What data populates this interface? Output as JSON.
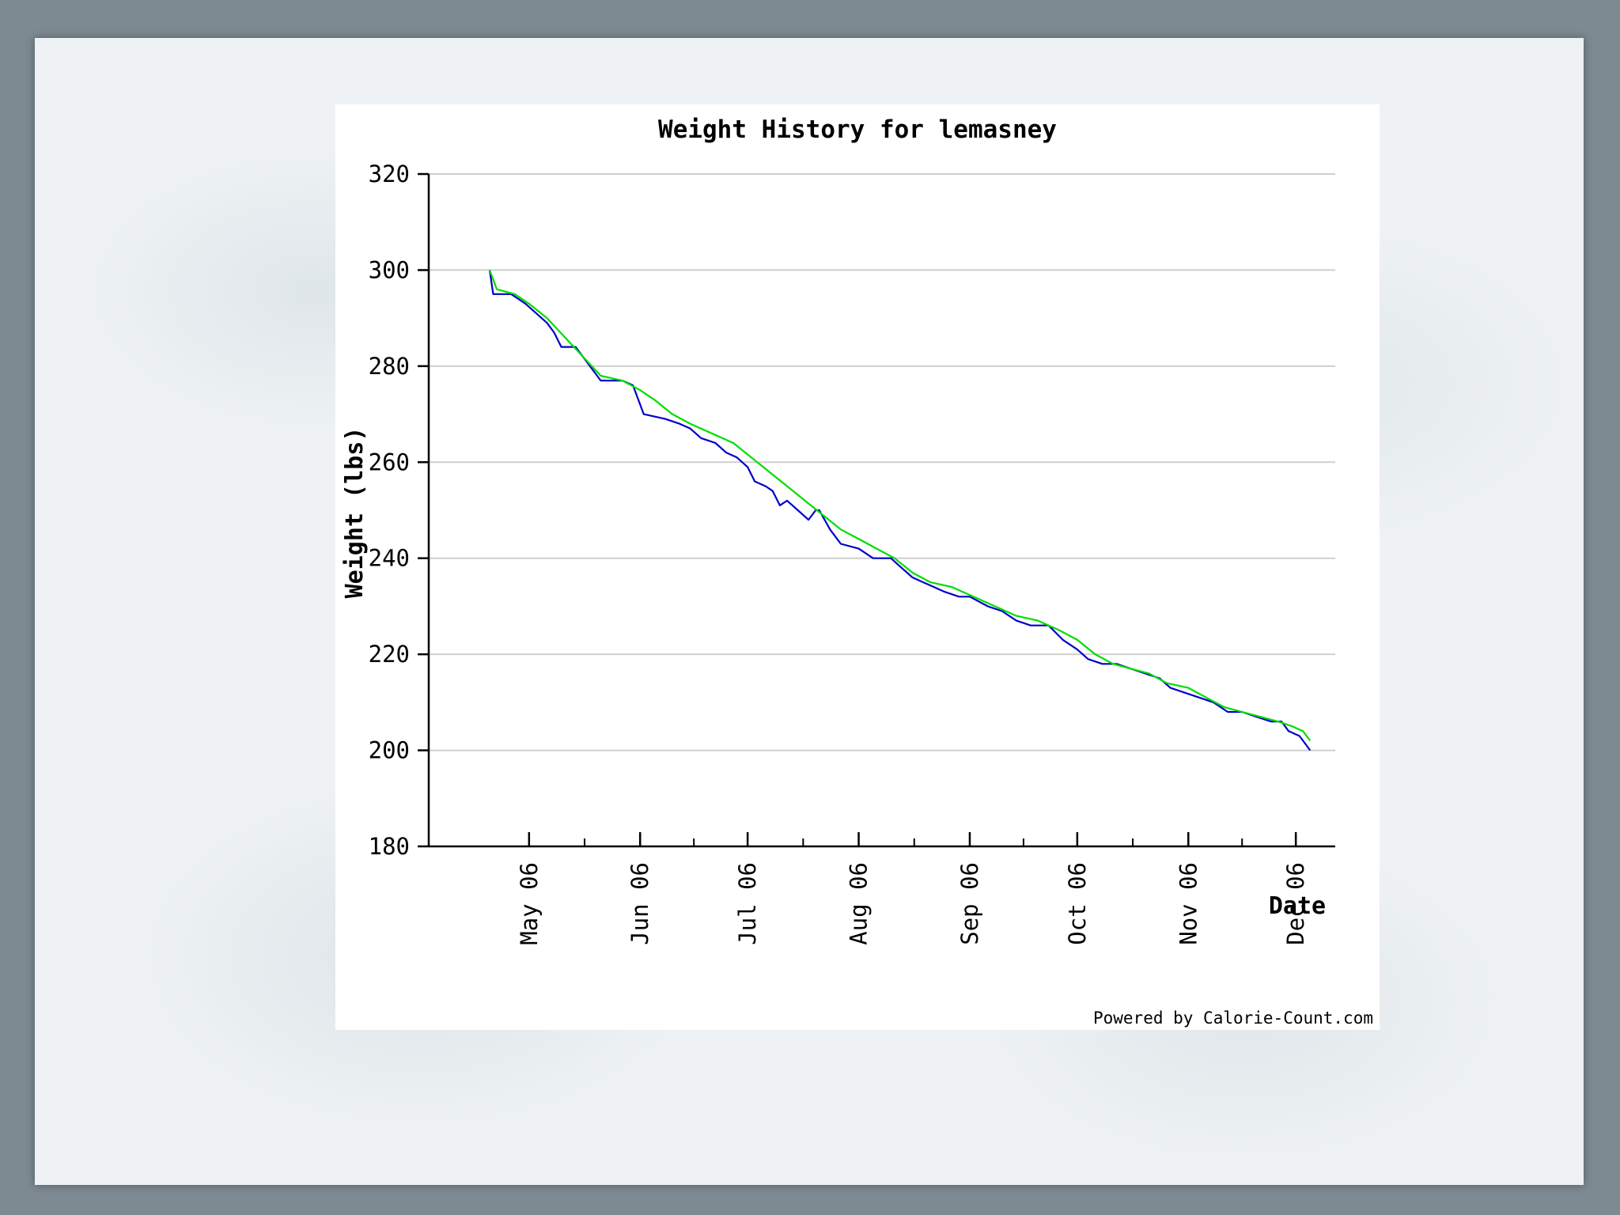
{
  "chart_data": {
    "type": "line",
    "title": "Weight History for lemasney",
    "xlabel": "Date",
    "ylabel": "Weight (lbs)",
    "ylim": [
      180,
      320
    ],
    "yticks": [
      180,
      200,
      220,
      240,
      260,
      280,
      300,
      320
    ],
    "xlim": [
      "2006-04-03",
      "2006-12-12"
    ],
    "xticks": [
      {
        "label": "May 06",
        "date": "2006-05-01"
      },
      {
        "label": "Jun 06",
        "date": "2006-06-01"
      },
      {
        "label": "Jul 06",
        "date": "2006-07-01"
      },
      {
        "label": "Aug 06",
        "date": "2006-08-01"
      },
      {
        "label": "Sep 06",
        "date": "2006-09-01"
      },
      {
        "label": "Oct 06",
        "date": "2006-10-01"
      },
      {
        "label": "Nov 06",
        "date": "2006-11-01"
      },
      {
        "label": "Dec 06",
        "date": "2006-12-01"
      }
    ],
    "grid": "horizontal",
    "legend": "none",
    "series": [
      {
        "color": "#0000cc",
        "points": [
          [
            "2006-04-20",
            300
          ],
          [
            "2006-04-21",
            295
          ],
          [
            "2006-04-26",
            295
          ],
          [
            "2006-04-30",
            293
          ],
          [
            "2006-05-03",
            291
          ],
          [
            "2006-05-06",
            289
          ],
          [
            "2006-05-08",
            287
          ],
          [
            "2006-05-10",
            284
          ],
          [
            "2006-05-14",
            284
          ],
          [
            "2006-05-17",
            281
          ],
          [
            "2006-05-20",
            278
          ],
          [
            "2006-05-21",
            277
          ],
          [
            "2006-05-27",
            277
          ],
          [
            "2006-05-30",
            276
          ],
          [
            "2006-06-02",
            270
          ],
          [
            "2006-06-08",
            269
          ],
          [
            "2006-06-12",
            268
          ],
          [
            "2006-06-15",
            267
          ],
          [
            "2006-06-18",
            265
          ],
          [
            "2006-06-22",
            264
          ],
          [
            "2006-06-25",
            262
          ],
          [
            "2006-06-28",
            261
          ],
          [
            "2006-07-01",
            259
          ],
          [
            "2006-07-03",
            256
          ],
          [
            "2006-07-06",
            255
          ],
          [
            "2006-07-08",
            254
          ],
          [
            "2006-07-10",
            251
          ],
          [
            "2006-07-12",
            252
          ],
          [
            "2006-07-15",
            250
          ],
          [
            "2006-07-18",
            248
          ],
          [
            "2006-07-20",
            250
          ],
          [
            "2006-07-21",
            250
          ],
          [
            "2006-07-24",
            246
          ],
          [
            "2006-07-27",
            243
          ],
          [
            "2006-08-01",
            242
          ],
          [
            "2006-08-05",
            240
          ],
          [
            "2006-08-10",
            240
          ],
          [
            "2006-08-13",
            238
          ],
          [
            "2006-08-16",
            236
          ],
          [
            "2006-08-19",
            235
          ],
          [
            "2006-08-22",
            234
          ],
          [
            "2006-08-25",
            233
          ],
          [
            "2006-08-29",
            232
          ],
          [
            "2006-09-01",
            232
          ],
          [
            "2006-09-06",
            230
          ],
          [
            "2006-09-10",
            229
          ],
          [
            "2006-09-14",
            227
          ],
          [
            "2006-09-18",
            226
          ],
          [
            "2006-09-23",
            226
          ],
          [
            "2006-09-27",
            223
          ],
          [
            "2006-10-01",
            221
          ],
          [
            "2006-10-04",
            219
          ],
          [
            "2006-10-08",
            218
          ],
          [
            "2006-10-12",
            218
          ],
          [
            "2006-10-16",
            217
          ],
          [
            "2006-10-20",
            216
          ],
          [
            "2006-10-24",
            215
          ],
          [
            "2006-10-27",
            213
          ],
          [
            "2006-10-31",
            212
          ],
          [
            "2006-11-04",
            211
          ],
          [
            "2006-11-08",
            210
          ],
          [
            "2006-11-12",
            208
          ],
          [
            "2006-11-16",
            208
          ],
          [
            "2006-11-20",
            207
          ],
          [
            "2006-11-24",
            206
          ],
          [
            "2006-11-27",
            206
          ],
          [
            "2006-11-29",
            204
          ],
          [
            "2006-12-02",
            203
          ],
          [
            "2006-12-04",
            201
          ],
          [
            "2006-12-05",
            200
          ]
        ]
      },
      {
        "color": "#00dd00",
        "points": [
          [
            "2006-04-20",
            300
          ],
          [
            "2006-04-22",
            296
          ],
          [
            "2006-04-27",
            295
          ],
          [
            "2006-05-01",
            293
          ],
          [
            "2006-05-06",
            290
          ],
          [
            "2006-05-11",
            286
          ],
          [
            "2006-05-16",
            282
          ],
          [
            "2006-05-21",
            278
          ],
          [
            "2006-05-27",
            277
          ],
          [
            "2006-06-01",
            275
          ],
          [
            "2006-06-05",
            273
          ],
          [
            "2006-06-10",
            270
          ],
          [
            "2006-06-15",
            268
          ],
          [
            "2006-06-21",
            266
          ],
          [
            "2006-06-27",
            264
          ],
          [
            "2006-07-02",
            261
          ],
          [
            "2006-07-07",
            258
          ],
          [
            "2006-07-12",
            255
          ],
          [
            "2006-07-17",
            252
          ],
          [
            "2006-07-22",
            249
          ],
          [
            "2006-07-27",
            246
          ],
          [
            "2006-08-01",
            244
          ],
          [
            "2006-08-06",
            242
          ],
          [
            "2006-08-11",
            240
          ],
          [
            "2006-08-16",
            237
          ],
          [
            "2006-08-21",
            235
          ],
          [
            "2006-08-27",
            234
          ],
          [
            "2006-09-02",
            232
          ],
          [
            "2006-09-08",
            230
          ],
          [
            "2006-09-14",
            228
          ],
          [
            "2006-09-20",
            227
          ],
          [
            "2006-09-26",
            225
          ],
          [
            "2006-10-01",
            223
          ],
          [
            "2006-10-06",
            220
          ],
          [
            "2006-10-11",
            218
          ],
          [
            "2006-10-16",
            217
          ],
          [
            "2006-10-21",
            216
          ],
          [
            "2006-10-26",
            214
          ],
          [
            "2006-11-01",
            213
          ],
          [
            "2006-11-06",
            211
          ],
          [
            "2006-11-11",
            209
          ],
          [
            "2006-11-16",
            208
          ],
          [
            "2006-11-21",
            207
          ],
          [
            "2006-11-26",
            206
          ],
          [
            "2006-11-30",
            205
          ],
          [
            "2006-12-03",
            204
          ],
          [
            "2006-12-05",
            202
          ]
        ]
      }
    ]
  },
  "footer": {
    "credit": "Powered by Calorie-Count.com"
  }
}
